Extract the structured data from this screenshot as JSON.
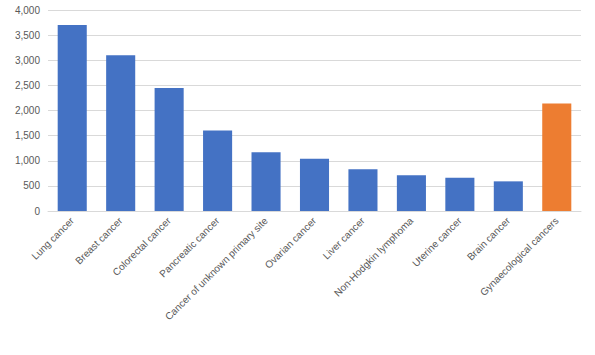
{
  "chart_data": {
    "type": "bar",
    "categories": [
      "Lung cancer",
      "Breast cancer",
      "Colorectal cancer",
      "Pancreatic cancer",
      "Cancer of unknown primary site",
      "Ovarian cancer",
      "Liver cancer",
      "Non-Hodgkin lymphoma",
      "Uterine cancer",
      "Brain cancer",
      "Gynaecological cancers"
    ],
    "values": [
      3700,
      3100,
      2450,
      1600,
      1170,
      1040,
      830,
      710,
      660,
      590,
      2140
    ],
    "colors": [
      "#4472c4",
      "#4472c4",
      "#4472c4",
      "#4472c4",
      "#4472c4",
      "#4472c4",
      "#4472c4",
      "#4472c4",
      "#4472c4",
      "#4472c4",
      "#ed7d31"
    ],
    "ylim": [
      0,
      4000
    ],
    "yticks": [
      0,
      500,
      {
        "value": 1000,
        "label": "1,000"
      },
      {
        "value": 1500,
        "label": "1,500"
      },
      {
        "value": 2000,
        "label": "2,000"
      },
      {
        "value": 2500,
        "label": "2,500"
      },
      {
        "value": 3000,
        "label": "3,000"
      },
      {
        "value": 3500,
        "label": "3,500"
      },
      {
        "value": 4000,
        "label": "4,000"
      }
    ],
    "grid": true
  }
}
